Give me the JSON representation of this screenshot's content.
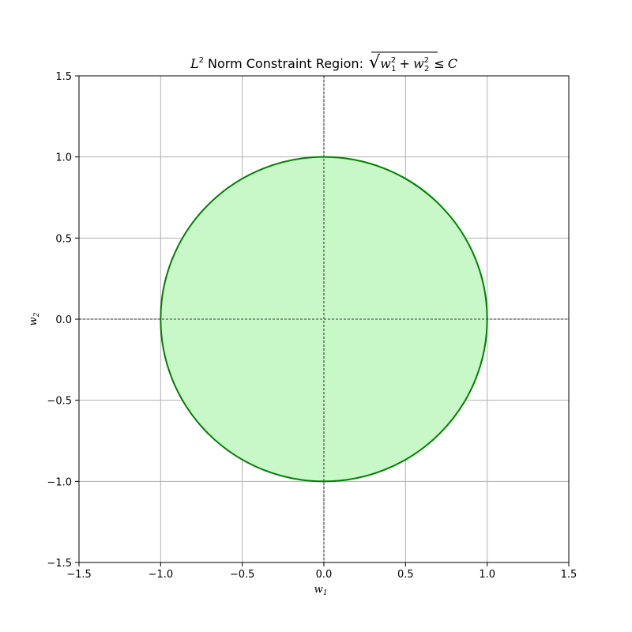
{
  "chart_data": {
    "type": "area",
    "title": {
      "norm_symbol": "L",
      "norm_exponent": "2",
      "text": " Norm Constraint Region: ",
      "formula_var": "w",
      "formula_sub1": "1",
      "formula_sub2": "2",
      "formula_power": "2",
      "formula_plus": "+",
      "formula_leq": "≤",
      "formula_const": "C"
    },
    "xlabel": {
      "var": "w",
      "sub": "1"
    },
    "ylabel": {
      "var": "w",
      "sub": "2"
    },
    "xlim": [
      -1.5,
      1.5
    ],
    "ylim": [
      -1.5,
      1.5
    ],
    "xticks": [
      -1.5,
      -1.0,
      -0.5,
      0.0,
      0.5,
      1.0,
      1.5
    ],
    "yticks": [
      -1.5,
      -1.0,
      -0.5,
      0.0,
      0.5,
      1.0,
      1.5
    ],
    "xtick_labels": [
      "−1.5",
      "−1.0",
      "−0.5",
      "0.0",
      "0.5",
      "1.0",
      "1.5"
    ],
    "ytick_labels": [
      "−1.5",
      "−1.0",
      "−0.5",
      "0.0",
      "0.5",
      "1.0",
      "1.5"
    ],
    "grid": true,
    "reference_lines": {
      "x": 0,
      "y": 0,
      "style": "dashed"
    },
    "series": [
      {
        "shape": "circle",
        "center": [
          0,
          0
        ],
        "radius": 1.0,
        "edge_color": "#008000",
        "fill_color": "#c8f7c8"
      }
    ]
  }
}
